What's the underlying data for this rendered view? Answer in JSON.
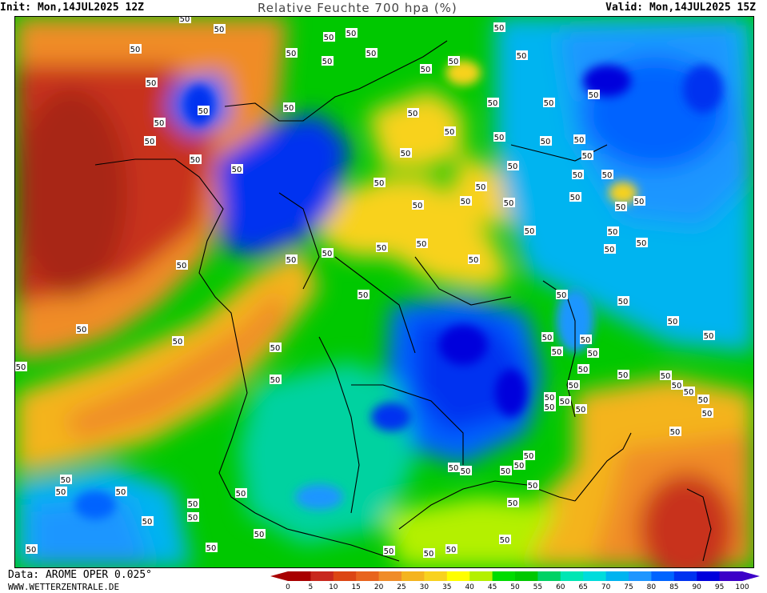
{
  "header": {
    "init": "Init: Mon,14JUL2025 12Z",
    "title": "Relative Feuchte 700 hpa (%)",
    "valid": "Valid: Mon,14JUL2025 15Z"
  },
  "footer": {
    "data_source": "Data: AROME OPER 0.025°",
    "website": "WWW.WETTERZENTRALE.DE"
  },
  "contour_label": "50",
  "legend": {
    "ticks": [
      "0",
      "5",
      "10",
      "15",
      "20",
      "25",
      "30",
      "35",
      "40",
      "45",
      "50",
      "55",
      "60",
      "65",
      "70",
      "75",
      "80",
      "85",
      "90",
      "95",
      "100"
    ],
    "colors": [
      "#a80000",
      "#c8281e",
      "#dc4614",
      "#e8641e",
      "#f08c28",
      "#f4b41e",
      "#f8d21e",
      "#ffff00",
      "#b4f000",
      "#00dc00",
      "#00c800",
      "#00d264",
      "#00e6b4",
      "#00dcdc",
      "#00b4f0",
      "#1e96ff",
      "#0064ff",
      "#0032f0",
      "#0000dc",
      "#3c00c8"
    ]
  },
  "colors": {
    "very_dry": "#c8321e",
    "dry": "#f08c28",
    "medium": "#f8d21e",
    "moist": "#00c800",
    "wet": "#00b4f0",
    "very_wet": "#0032f0"
  }
}
